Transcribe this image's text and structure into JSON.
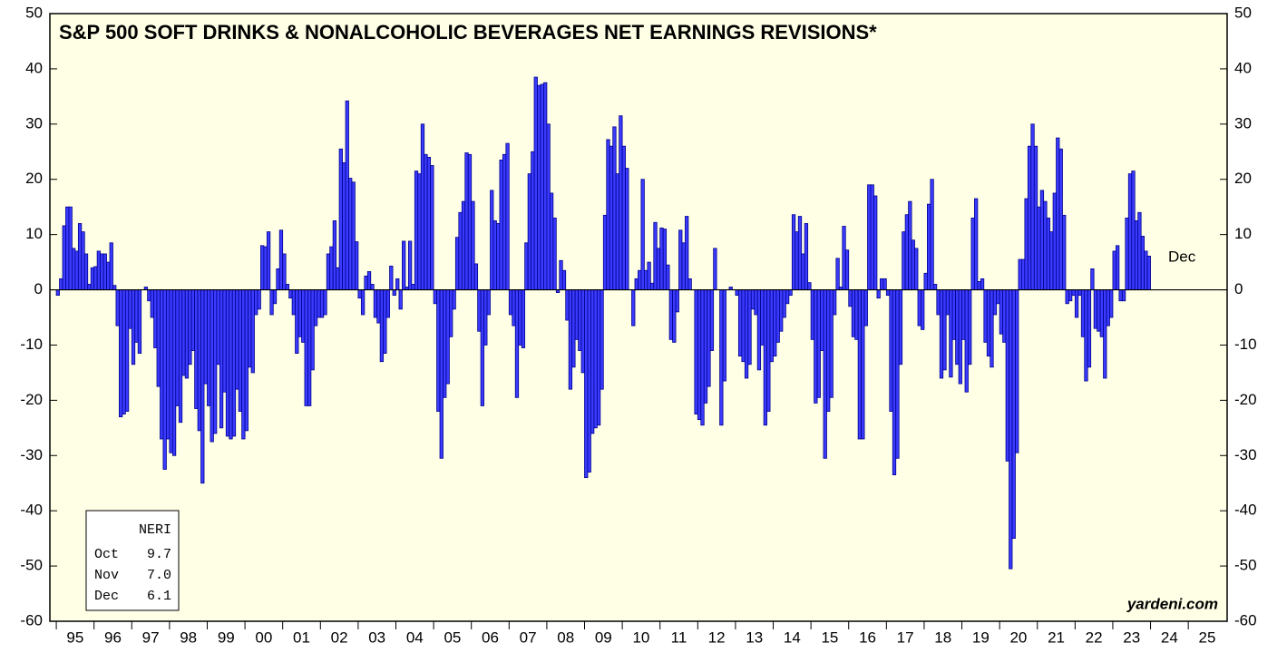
{
  "chart_data": {
    "type": "bar",
    "title": "S&P 500 SOFT DRINKS & NONALCOHOLIC BEVERAGES NET EARNINGS REVISIONS*",
    "source": "yardeni.com",
    "annotation": "Dec",
    "start_year": 1995,
    "color": "#3b3bff",
    "values": [
      -1,
      2,
      11.6,
      15,
      15,
      7.5,
      7,
      12,
      10.5,
      6.5,
      1,
      4,
      4.2,
      7,
      6.5,
      6.5,
      5,
      8.5,
      0.8,
      -6.5,
      -23,
      -22.5,
      -22,
      -7,
      -13.5,
      -9.5,
      -11.5,
      0,
      0.5,
      -2,
      -5,
      -10.5,
      -17.5,
      -27,
      -32.5,
      -27,
      -29.5,
      -30,
      -21,
      -24,
      -15.5,
      -16,
      -13.5,
      -11,
      -21.5,
      -25.5,
      -35,
      -17,
      -21,
      -27.5,
      -26,
      -13.5,
      -25,
      -18.5,
      -26.5,
      -27,
      -26.5,
      -18,
      -22,
      -27,
      -25.5,
      -14,
      -15,
      -4.5,
      -3.5,
      8,
      7.8,
      10.5,
      -4.5,
      -2.5,
      3.8,
      10.8,
      6.5,
      1,
      -1.5,
      -4.5,
      -11.5,
      -8.5,
      -9.5,
      -21,
      -21,
      -14.5,
      -6.5,
      -5,
      -5,
      -4.5,
      6.5,
      7.8,
      12.5,
      4,
      25.5,
      23,
      34.2,
      20.2,
      19.5,
      8.7,
      -1.5,
      -4.5,
      2.5,
      3.3,
      1,
      -5,
      -6,
      -13,
      -11.5,
      -5,
      4.3,
      -1,
      2,
      -3.5,
      8.8,
      0.5,
      8.8,
      1,
      21.5,
      21,
      30,
      24.5,
      24,
      22.5,
      -2.5,
      -22,
      -30.5,
      -19.5,
      -17,
      -8.5,
      -3.5,
      9.5,
      14,
      16,
      24.8,
      24.5,
      16,
      4.7,
      -7.5,
      -21,
      -10,
      -4.5,
      18,
      12.5,
      12,
      23.5,
      24.5,
      26.5,
      -4.5,
      -6.5,
      -19.5,
      -10,
      -10.5,
      8.5,
      21,
      25,
      38.5,
      37,
      37.2,
      37.5,
      30,
      17.5,
      13,
      -0.5,
      5.3,
      3.5,
      -5.5,
      -18,
      -14,
      -9,
      -11,
      -15,
      -34,
      -33,
      -26,
      -25,
      -24.5,
      -18,
      13.5,
      27.2,
      26,
      29.5,
      21,
      31.5,
      26,
      22,
      0,
      -6.5,
      2,
      3.5,
      20,
      3.5,
      5,
      1.2,
      12.2,
      7.5,
      11.2,
      11,
      4.5,
      -9,
      -9.5,
      -4,
      10.8,
      8.5,
      13.3,
      2,
      0,
      -22.5,
      -23.5,
      -24.5,
      -20.5,
      -17.5,
      -11,
      7.5,
      0,
      -24.5,
      -16.5,
      0,
      0.5,
      0,
      -1,
      -12,
      -13,
      -16,
      -13.5,
      -3.5,
      -4.5,
      -14.5,
      -10,
      -24.5,
      -22,
      -13,
      -12,
      -9.5,
      -7.5,
      -5,
      -2.5,
      -1,
      13.6,
      10.5,
      13.3,
      6.5,
      12,
      1.3,
      -9,
      -20.5,
      -19.5,
      -11,
      -30.5,
      -22,
      -19.5,
      -4.5,
      5.7,
      0.5,
      11.5,
      7.2,
      -3,
      -8.5,
      -9,
      -27,
      -27,
      -6.5,
      19,
      19,
      17,
      -1.5,
      2,
      2,
      -1,
      -22,
      -33.5,
      -30.5,
      -13.5,
      10.5,
      13.6,
      16,
      9,
      7.5,
      -6.5,
      -7.2,
      3,
      15.5,
      20,
      1,
      -4.5,
      -16,
      -14.5,
      -4.5,
      -15.8,
      -9,
      -13.5,
      -17,
      -9,
      -18.5,
      -13.5,
      13,
      16.5,
      1.5,
      2,
      -9.5,
      -12,
      -14,
      -4.5,
      -2.5,
      -8,
      -9.5,
      -31,
      -50.5,
      -45,
      -29.5,
      5.5,
      5.5,
      16.5,
      26,
      30,
      26,
      15,
      18,
      16,
      13,
      10.5,
      17.5,
      27.5,
      25.5,
      13.5,
      -2.5,
      -2,
      -1,
      -5,
      -1,
      -8.5,
      -16.5,
      -14,
      3.8,
      -7,
      -7.5,
      -8.5,
      -16,
      -6.5,
      -5,
      7,
      8,
      -2,
      -2,
      13,
      21,
      21.5,
      12.5,
      14,
      9.7,
      7.0,
      6.1
    ],
    "xlim": [
      1994.83,
      2026.03
    ],
    "xticks": [
      {
        "value": 1995,
        "label": "95"
      },
      {
        "value": 1996,
        "label": "96"
      },
      {
        "value": 1997,
        "label": "97"
      },
      {
        "value": 1998,
        "label": "98"
      },
      {
        "value": 1999,
        "label": "99"
      },
      {
        "value": 2000,
        "label": "00"
      },
      {
        "value": 2001,
        "label": "01"
      },
      {
        "value": 2002,
        "label": "02"
      },
      {
        "value": 2003,
        "label": "03"
      },
      {
        "value": 2004,
        "label": "04"
      },
      {
        "value": 2005,
        "label": "05"
      },
      {
        "value": 2006,
        "label": "06"
      },
      {
        "value": 2007,
        "label": "07"
      },
      {
        "value": 2008,
        "label": "08"
      },
      {
        "value": 2009,
        "label": "09"
      },
      {
        "value": 2010,
        "label": "10"
      },
      {
        "value": 2011,
        "label": "11"
      },
      {
        "value": 2012,
        "label": "12"
      },
      {
        "value": 2013,
        "label": "13"
      },
      {
        "value": 2014,
        "label": "14"
      },
      {
        "value": 2015,
        "label": "15"
      },
      {
        "value": 2016,
        "label": "16"
      },
      {
        "value": 2017,
        "label": "17"
      },
      {
        "value": 2018,
        "label": "18"
      },
      {
        "value": 2019,
        "label": "19"
      },
      {
        "value": 2020,
        "label": "20"
      },
      {
        "value": 2021,
        "label": "21"
      },
      {
        "value": 2022,
        "label": "22"
      },
      {
        "value": 2023,
        "label": "23"
      },
      {
        "value": 2024,
        "label": "24"
      },
      {
        "value": 2025,
        "label": "25"
      }
    ],
    "ylim": [
      -60,
      50
    ],
    "yticks": [
      -60,
      -50,
      -40,
      -30,
      -20,
      -10,
      0,
      10,
      20,
      30,
      40,
      50
    ],
    "grid": false,
    "box": {
      "header": "NERI",
      "rows": [
        [
          "Oct",
          "9.7"
        ],
        [
          "Nov",
          "7.0"
        ],
        [
          "Dec",
          "6.1"
        ]
      ]
    }
  }
}
